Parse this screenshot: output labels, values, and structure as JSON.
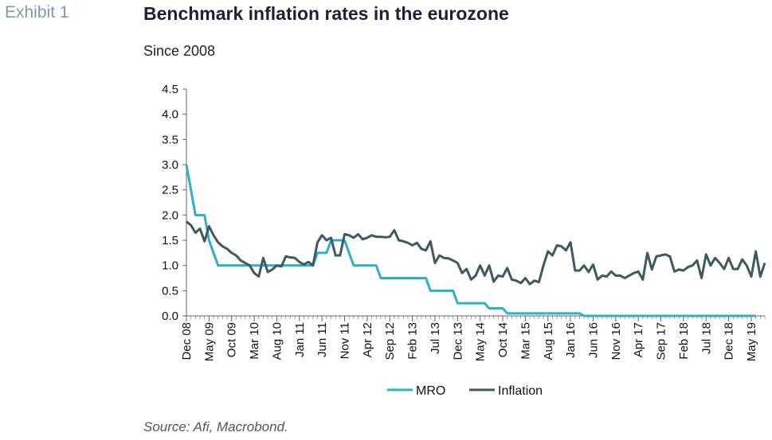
{
  "exhibit": "Exhibit 1",
  "title": "Benchmark inflation rates in the eurozone",
  "subtitle": "Since 2008",
  "source": "Source: Afi, Macrobond.",
  "colors": {
    "mro": "#2eb0c8",
    "inflation": "#3d5a5f",
    "axis": "#666666"
  },
  "chart_data": {
    "type": "line",
    "ylim": [
      0,
      4.5
    ],
    "yticks": [
      "0.0",
      "0.5",
      "1.0",
      "1.5",
      "2.0",
      "2.5",
      "3.0",
      "3.5",
      "4.0",
      "4.5"
    ],
    "x_tick_labels": [
      "Dec 08",
      "May 09",
      "Oct 09",
      "Mar 10",
      "Aug 10",
      "Jan 11",
      "Jun 11",
      "Nov 11",
      "Apr 12",
      "Sep 12",
      "Feb 13",
      "Jul 13",
      "Dec 13",
      "May 14",
      "Oct 14",
      "Mar 15",
      "Aug 15",
      "Jan 16",
      "Jun 16",
      "Nov 16",
      "Apr 17",
      "Sep 17",
      "Feb 18",
      "Jul 18",
      "Dec 18",
      "May 19"
    ],
    "x_start": "Dec 08",
    "legend": [
      "MRO",
      "Inflation"
    ],
    "legend_position": "bottom",
    "grid": false,
    "series": [
      {
        "name": "MRO",
        "step": true,
        "points": [
          [
            0,
            3.0
          ],
          [
            1,
            2.5
          ],
          [
            2,
            2.0
          ],
          [
            4,
            2.0
          ],
          [
            5,
            1.5
          ],
          [
            6,
            1.25
          ],
          [
            7,
            1.0
          ],
          [
            28,
            1.0
          ],
          [
            29,
            1.25
          ],
          [
            31,
            1.25
          ],
          [
            32,
            1.5
          ],
          [
            35,
            1.5
          ],
          [
            36,
            1.25
          ],
          [
            37,
            1.0
          ],
          [
            42,
            1.0
          ],
          [
            43,
            0.75
          ],
          [
            53,
            0.75
          ],
          [
            54,
            0.5
          ],
          [
            59,
            0.5
          ],
          [
            60,
            0.25
          ],
          [
            66,
            0.25
          ],
          [
            67,
            0.15
          ],
          [
            70,
            0.15
          ],
          [
            71,
            0.05
          ],
          [
            87,
            0.05
          ],
          [
            88,
            0.0
          ],
          [
            126,
            0.0
          ]
        ]
      },
      {
        "name": "Inflation",
        "points": [
          [
            0,
            1.87
          ],
          [
            1,
            1.8
          ],
          [
            2,
            1.65
          ],
          [
            3,
            1.73
          ],
          [
            4,
            1.48
          ],
          [
            5,
            1.78
          ],
          [
            6,
            1.6
          ],
          [
            7,
            1.46
          ],
          [
            8,
            1.38
          ],
          [
            9,
            1.33
          ],
          [
            10,
            1.25
          ],
          [
            11,
            1.2
          ],
          [
            12,
            1.1
          ],
          [
            13,
            1.05
          ],
          [
            14,
            1.0
          ],
          [
            15,
            0.85
          ],
          [
            16,
            0.78
          ],
          [
            17,
            1.15
          ],
          [
            18,
            0.87
          ],
          [
            19,
            0.92
          ],
          [
            20,
            1.0
          ],
          [
            21,
            0.98
          ],
          [
            22,
            1.18
          ],
          [
            23,
            1.16
          ],
          [
            24,
            1.15
          ],
          [
            25,
            1.07
          ],
          [
            26,
            1.02
          ],
          [
            27,
            1.07
          ],
          [
            28,
            1.0
          ],
          [
            29,
            1.46
          ],
          [
            30,
            1.6
          ],
          [
            31,
            1.5
          ],
          [
            32,
            1.55
          ],
          [
            33,
            1.2
          ],
          [
            34,
            1.2
          ],
          [
            35,
            1.62
          ],
          [
            36,
            1.6
          ],
          [
            37,
            1.55
          ],
          [
            38,
            1.62
          ],
          [
            39,
            1.52
          ],
          [
            40,
            1.55
          ],
          [
            41,
            1.6
          ],
          [
            42,
            1.57
          ],
          [
            43,
            1.57
          ],
          [
            44,
            1.56
          ],
          [
            45,
            1.57
          ],
          [
            46,
            1.7
          ],
          [
            47,
            1.5
          ],
          [
            48,
            1.48
          ],
          [
            49,
            1.45
          ],
          [
            50,
            1.4
          ],
          [
            51,
            1.45
          ],
          [
            52,
            1.33
          ],
          [
            53,
            1.3
          ],
          [
            54,
            1.48
          ],
          [
            55,
            1.05
          ],
          [
            56,
            1.2
          ],
          [
            57,
            1.15
          ],
          [
            58,
            1.14
          ],
          [
            59,
            1.1
          ],
          [
            60,
            1.05
          ],
          [
            61,
            0.85
          ],
          [
            62,
            0.93
          ],
          [
            63,
            0.72
          ],
          [
            64,
            0.8
          ],
          [
            65,
            1.0
          ],
          [
            66,
            0.8
          ],
          [
            67,
            1.0
          ],
          [
            68,
            0.68
          ],
          [
            69,
            0.8
          ],
          [
            70,
            0.78
          ],
          [
            71,
            0.95
          ],
          [
            72,
            0.72
          ],
          [
            73,
            0.7
          ],
          [
            74,
            0.65
          ],
          [
            75,
            0.75
          ],
          [
            76,
            0.63
          ],
          [
            77,
            0.7
          ],
          [
            78,
            0.67
          ],
          [
            79,
            1.0
          ],
          [
            80,
            1.28
          ],
          [
            81,
            1.2
          ],
          [
            82,
            1.4
          ],
          [
            83,
            1.38
          ],
          [
            84,
            1.3
          ],
          [
            85,
            1.46
          ],
          [
            86,
            0.9
          ],
          [
            87,
            0.9
          ],
          [
            88,
            1.0
          ],
          [
            89,
            0.87
          ],
          [
            90,
            1.02
          ],
          [
            91,
            0.72
          ],
          [
            92,
            0.8
          ],
          [
            93,
            0.78
          ],
          [
            94,
            0.88
          ],
          [
            95,
            0.8
          ],
          [
            96,
            0.8
          ],
          [
            97,
            0.75
          ],
          [
            98,
            0.8
          ],
          [
            99,
            0.85
          ],
          [
            100,
            0.88
          ],
          [
            101,
            0.72
          ],
          [
            102,
            1.25
          ],
          [
            103,
            0.92
          ],
          [
            104,
            1.18
          ],
          [
            105,
            1.2
          ],
          [
            106,
            1.22
          ],
          [
            107,
            1.18
          ],
          [
            108,
            0.88
          ],
          [
            109,
            0.92
          ],
          [
            110,
            0.9
          ],
          [
            111,
            0.97
          ],
          [
            112,
            1.0
          ],
          [
            113,
            1.1
          ],
          [
            114,
            0.75
          ],
          [
            115,
            1.22
          ],
          [
            116,
            1.0
          ],
          [
            117,
            1.15
          ],
          [
            118,
            1.05
          ],
          [
            119,
            0.93
          ],
          [
            120,
            1.15
          ],
          [
            121,
            0.93
          ],
          [
            122,
            0.93
          ],
          [
            123,
            1.12
          ],
          [
            124,
            1.0
          ],
          [
            125,
            0.78
          ],
          [
            126,
            1.28
          ],
          [
            127,
            0.78
          ],
          [
            128,
            1.05
          ]
        ]
      }
    ]
  }
}
